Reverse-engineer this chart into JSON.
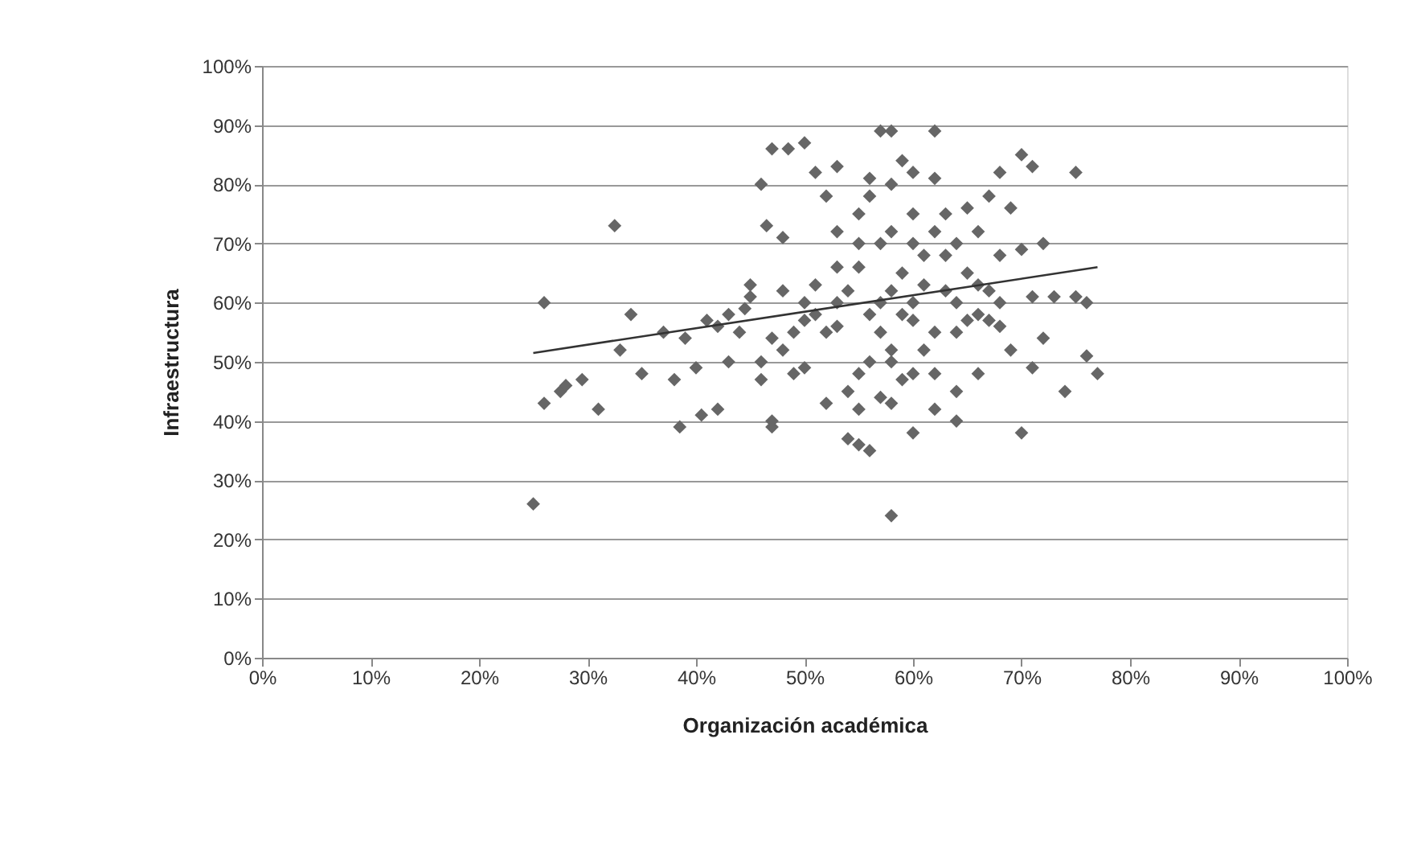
{
  "chart_data": {
    "type": "scatter",
    "xlabel": "Organización académica",
    "ylabel": "Infraestructura",
    "xlim": [
      0,
      100
    ],
    "ylim": [
      0,
      100
    ],
    "xticks": [
      {
        "value": 0,
        "label": "0%"
      },
      {
        "value": 10,
        "label": "10%"
      },
      {
        "value": 20,
        "label": "20%"
      },
      {
        "value": 30,
        "label": "30%"
      },
      {
        "value": 40,
        "label": "40%"
      },
      {
        "value": 50,
        "label": "50%"
      },
      {
        "value": 60,
        "label": "60%"
      },
      {
        "value": 70,
        "label": "70%"
      },
      {
        "value": 80,
        "label": "80%"
      },
      {
        "value": 90,
        "label": "90%"
      },
      {
        "value": 100,
        "label": "100%"
      }
    ],
    "yticks": [
      {
        "value": 0,
        "label": "0%"
      },
      {
        "value": 10,
        "label": "10%"
      },
      {
        "value": 20,
        "label": "20%"
      },
      {
        "value": 30,
        "label": "30%"
      },
      {
        "value": 40,
        "label": "40%"
      },
      {
        "value": 50,
        "label": "50%"
      },
      {
        "value": 60,
        "label": "60%"
      },
      {
        "value": 70,
        "label": "70%"
      },
      {
        "value": 80,
        "label": "80%"
      },
      {
        "value": 90,
        "label": "90%"
      },
      {
        "value": 100,
        "label": "100%"
      }
    ],
    "grid": "y",
    "marker": "diamond",
    "series": [
      {
        "color": "#666666",
        "x": [
          25,
          26,
          26,
          27.5,
          28,
          29.5,
          31,
          32.5,
          33,
          34,
          35,
          37,
          38,
          38.5,
          39,
          40,
          40.5,
          42,
          41,
          42,
          43,
          43,
          44,
          44.5,
          45,
          45,
          46,
          46,
          46.5,
          47,
          47,
          47,
          48,
          48,
          48.5,
          49,
          50,
          50,
          50,
          51,
          51,
          52,
          52,
          53,
          53,
          53,
          54,
          54,
          55,
          55,
          55,
          56,
          56,
          56,
          57,
          57,
          57,
          58,
          58,
          58,
          58,
          59,
          59,
          59,
          60,
          60,
          60,
          61,
          61,
          62,
          62,
          62,
          63,
          63,
          64,
          64,
          65,
          65,
          66,
          66,
          67,
          67,
          68,
          68,
          69,
          69,
          70,
          70,
          70,
          71,
          71,
          71,
          72,
          72,
          73,
          74,
          75,
          76,
          76,
          77,
          75,
          48,
          50,
          52,
          54,
          56,
          58,
          60,
          62,
          64,
          66,
          68,
          55,
          57,
          59,
          61,
          63,
          65,
          67,
          53,
          51,
          49,
          47,
          46,
          58,
          60,
          62,
          56,
          58,
          60,
          55,
          53,
          64,
          66,
          68,
          62,
          60,
          58,
          64,
          57,
          55
        ],
        "values": [
          26,
          60,
          43,
          45,
          46,
          47,
          42,
          73,
          52,
          58,
          48,
          55,
          47,
          39,
          54,
          49,
          41,
          42,
          57,
          56,
          50,
          58,
          55,
          59,
          61,
          63,
          47,
          80,
          73,
          86,
          40,
          39,
          71,
          62,
          86,
          48,
          87,
          57,
          49,
          82,
          63,
          43,
          78,
          83,
          66,
          56,
          45,
          37,
          36,
          75,
          66,
          35,
          81,
          50,
          89,
          70,
          60,
          89,
          24,
          52,
          43,
          84,
          65,
          47,
          75,
          38,
          57,
          68,
          52,
          81,
          89,
          42,
          62,
          75,
          40,
          55,
          76,
          65,
          58,
          48,
          78,
          62,
          82,
          56,
          52,
          76,
          85,
          69,
          38,
          83,
          61,
          49,
          54,
          70,
          61,
          45,
          82,
          60,
          51,
          48,
          61,
          52,
          60,
          55,
          62,
          58,
          62,
          60,
          55,
          60,
          63,
          60,
          48,
          55,
          58,
          63,
          68,
          57,
          57,
          60,
          58,
          55,
          54,
          50,
          72,
          70,
          72,
          78,
          80,
          82,
          70,
          72,
          70,
          72,
          68,
          48,
          48,
          50,
          45,
          44,
          42
        ]
      },
      {
        "type": "line",
        "color": "#333333",
        "line_style": "solid",
        "marker": "none",
        "x": [
          25,
          77
        ],
        "values": [
          51.5,
          66
        ]
      }
    ]
  }
}
